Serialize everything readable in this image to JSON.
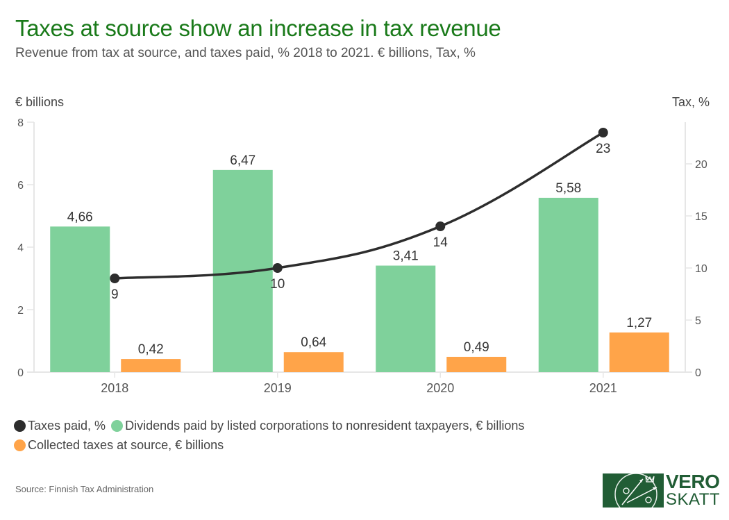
{
  "header": {
    "title": "Taxes at source show an increase in tax revenue",
    "subtitle": "Revenue from tax at source, and taxes paid, % 2018 to 2021. € billions, Tax, %"
  },
  "axes": {
    "left_title": "€ billions",
    "right_title": "Tax, %"
  },
  "legend": [
    {
      "label": "Taxes paid, %",
      "color": "#2d2d2d"
    },
    {
      "label": "Dividends paid by listed corporations to nonresident taxpayers, € billions",
      "color": "#7fd19b"
    },
    {
      "label": "Collected taxes at source, € billions",
      "color": "#ffa449"
    }
  ],
  "footer": {
    "source": "Source: Finnish Tax Administration",
    "logo_top": "VERO",
    "logo_bottom": "SKATT"
  },
  "chart_data": {
    "type": "bar",
    "title": "Taxes at source show an increase in tax revenue",
    "subtitle": "Revenue from tax at source, and taxes paid, % 2018 to 2021. € billions, Tax, %",
    "categories": [
      "2018",
      "2019",
      "2020",
      "2021"
    ],
    "ylabel": "€ billions",
    "ylabel_right": "Tax, %",
    "ylim": [
      0,
      8
    ],
    "ylim_right": [
      0,
      24
    ],
    "yticks": [
      0,
      2,
      4,
      6,
      8
    ],
    "yticks_right": [
      0,
      5,
      10,
      15,
      20
    ],
    "grid": false,
    "legend_position": "bottom-left",
    "series": [
      {
        "name": "Dividends paid by listed corporations to nonresident taxpayers, € billions",
        "type": "bar",
        "axis": "left",
        "color": "#7fd19b",
        "values": [
          4.66,
          6.47,
          3.41,
          5.58
        ],
        "labels": [
          "4,66",
          "6,47",
          "3,41",
          "5,58"
        ]
      },
      {
        "name": "Collected taxes at source, € billions",
        "type": "bar",
        "axis": "left",
        "color": "#ffa449",
        "values": [
          0.42,
          0.64,
          0.49,
          1.27
        ],
        "labels": [
          "0,42",
          "0,64",
          "0,49",
          "1,27"
        ]
      },
      {
        "name": "Taxes paid, %",
        "type": "line",
        "axis": "right",
        "color": "#2d2d2d",
        "values": [
          9,
          10,
          14,
          23
        ],
        "labels": [
          "9",
          "10",
          "14",
          "23"
        ]
      }
    ]
  }
}
